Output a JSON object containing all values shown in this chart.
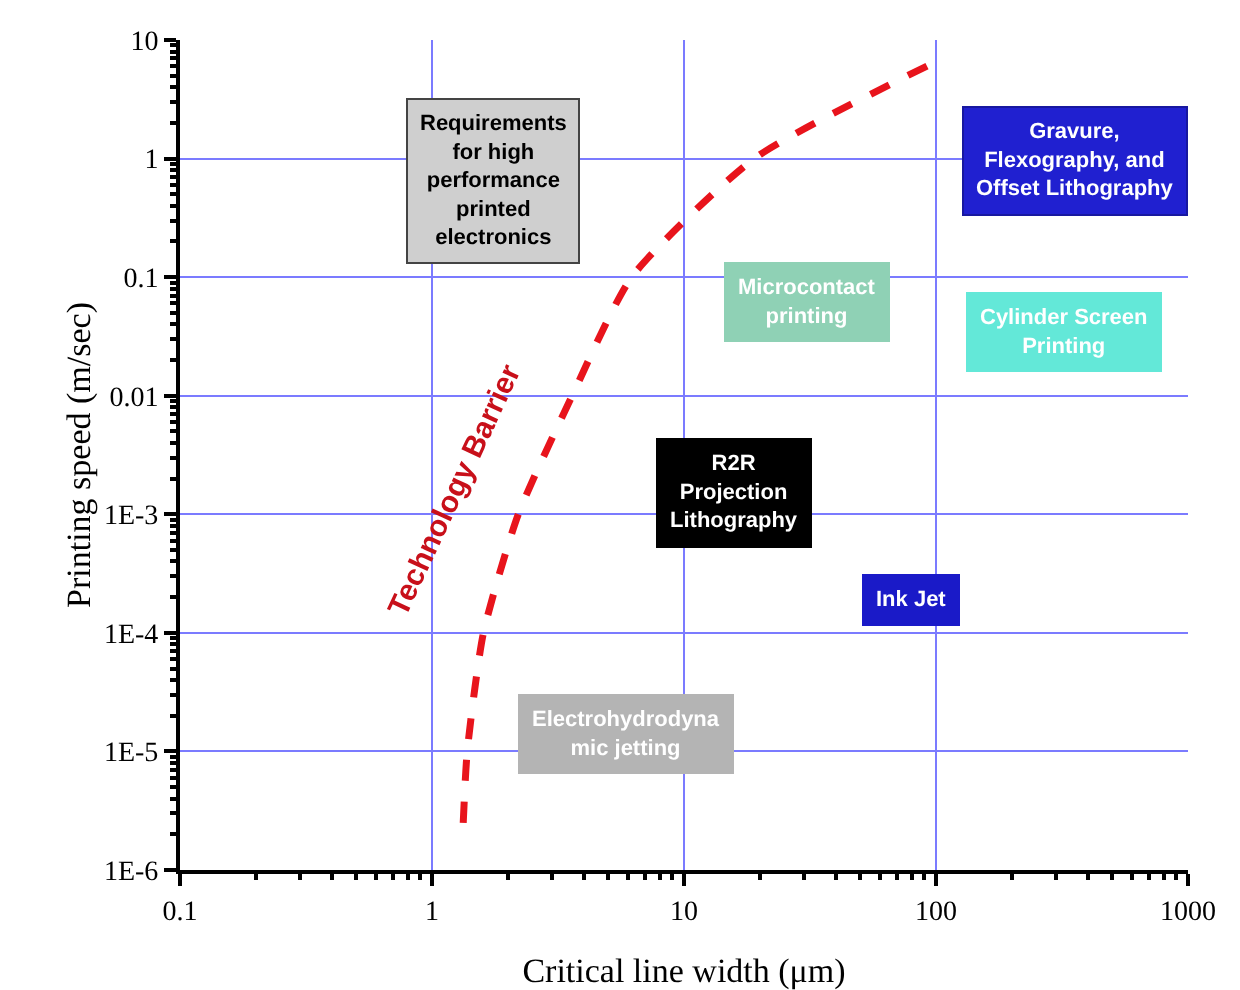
{
  "chart_data": {
    "type": "line",
    "xlabel": "Critical line width (μm)",
    "ylabel": "Printing speed (m/sec)",
    "log": "xy",
    "xlim": [
      0.1,
      1000
    ],
    "xticks": [
      0.1,
      1,
      10,
      100,
      1000
    ],
    "ylim": [
      1e-06,
      10
    ],
    "yticks": [
      {
        "value": 1e-06,
        "label": "1E-6"
      },
      {
        "value": 1e-05,
        "label": "1E-5"
      },
      {
        "value": 0.0001,
        "label": "1E-4"
      },
      {
        "value": 0.001,
        "label": "1E-3"
      },
      0.01,
      0.1,
      1,
      10
    ],
    "grid": true,
    "legend": false,
    "line_style": "dashed",
    "marker": "none",
    "series": [
      {
        "name": "Technology Barrier",
        "color": "#e8141c",
        "x": [
          1.33,
          1.38,
          1.6,
          2.2,
          3.6,
          6.2,
          19,
          96
        ],
        "values": [
          2.5e-06,
          1e-05,
          0.0001,
          0.001,
          0.01,
          0.1,
          1,
          6.3
        ]
      }
    ],
    "annotations": [
      "Requirements\nfor high\nperformance\nprinted\nelectronics",
      "Gravure,\nFlexography, and\nOffset Lithography",
      "Microcontact\nprinting",
      "Cylinder Screen\nPrinting",
      "R2R\nProjection\nLithography",
      "Ink Jet",
      "Electrohydrodyna\nmic jetting"
    ]
  }
}
